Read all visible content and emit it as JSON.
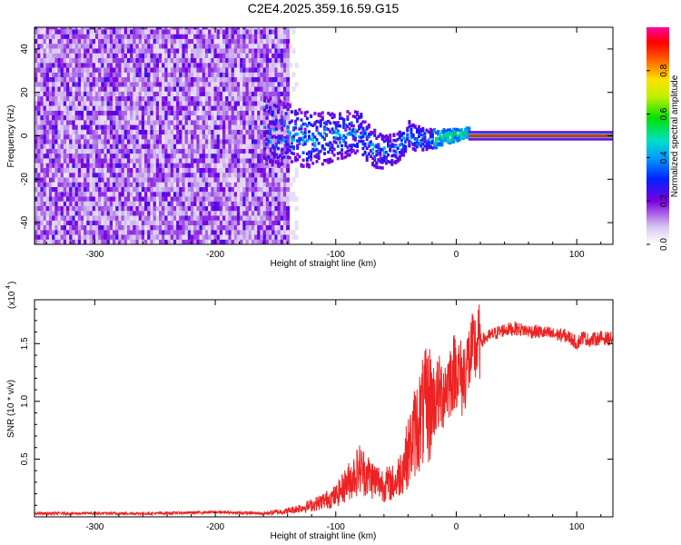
{
  "page": {
    "title": "C2E4.2025.359.16.59.G15"
  },
  "colors": {
    "snr_line": "#ee2222",
    "axis": "#000000",
    "background": "#ffffff"
  },
  "chart_data": [
    {
      "type": "heatmap",
      "title": "C2E4.2025.359.16.59.G15",
      "xlabel": "Height of straight line (km)",
      "ylabel": "Frequency (Hz)",
      "xlim": [
        -350,
        130
      ],
      "ylim": [
        -50,
        50
      ],
      "x_ticks": [
        -300,
        -200,
        -100,
        0,
        100
      ],
      "x_tick_labels": [
        "-300",
        "-200",
        "-100",
        "0",
        "100"
      ],
      "y_ticks": [
        -40,
        -20,
        0,
        20,
        40
      ],
      "y_tick_labels": [
        "-40",
        "-20",
        "0",
        "20",
        "40"
      ],
      "colorbar": {
        "label": "Normalized spectral amplitude",
        "range": [
          0,
          1
        ],
        "ticks": [
          0.0,
          0.2,
          0.4,
          0.6,
          0.8
        ],
        "tick_labels": [
          "0.0",
          "0.2",
          "0.4",
          "0.6",
          "0.8"
        ]
      },
      "regions": [
        {
          "x_range": [
            -350,
            -140
          ],
          "freq_range": [
            -50,
            50
          ],
          "description_level": 0.15
        },
        {
          "x_range": [
            -160,
            10
          ],
          "freq_center": 0,
          "amplitude": 0.35
        },
        {
          "x_range": [
            10,
            130
          ],
          "freq_center": 0,
          "amplitude": 1.0
        }
      ],
      "grid": false
    },
    {
      "type": "line",
      "xlabel": "Height of straight line (km)",
      "ylabel": "SNR (10 * v/v)",
      "y_scale_label": "(x10",
      "y_scale_exp": "4",
      "xlim": [
        -350,
        130
      ],
      "ylim": [
        0,
        1.88
      ],
      "x_ticks": [
        -300,
        -200,
        -100,
        0,
        100
      ],
      "x_tick_labels": [
        "-300",
        "-200",
        "-100",
        "0",
        "100"
      ],
      "y_ticks": [
        0.5,
        1.0,
        1.5
      ],
      "y_tick_labels": [
        "0.5",
        "1.0",
        "1.5"
      ],
      "series": [
        {
          "x": [
            -350,
            -300,
            -250,
            -200,
            -160,
            -140,
            -120,
            -100,
            -90,
            -80,
            -70,
            -60,
            -50,
            -40,
            -35,
            -30,
            -25,
            -20,
            -15,
            -10,
            -5,
            0,
            5,
            10,
            15,
            20,
            30,
            40,
            50,
            60,
            70,
            80,
            90,
            95,
            100,
            105,
            110,
            120,
            130
          ],
          "y": [
            0.03,
            0.03,
            0.03,
            0.04,
            0.03,
            0.05,
            0.1,
            0.18,
            0.3,
            0.42,
            0.33,
            0.28,
            0.3,
            0.55,
            0.72,
            0.85,
            0.95,
            1.0,
            1.05,
            1.1,
            1.2,
            1.3,
            1.18,
            1.35,
            1.45,
            1.52,
            1.58,
            1.62,
            1.63,
            1.61,
            1.6,
            1.58,
            1.57,
            1.55,
            1.5,
            1.56,
            1.53,
            1.55,
            1.54
          ]
        }
      ],
      "grid": false
    }
  ]
}
